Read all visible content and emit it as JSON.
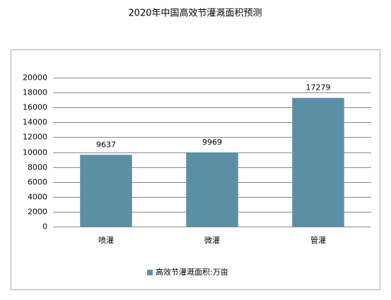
{
  "chart_data": {
    "type": "bar",
    "title": "2020年中国高效节灌溉面积预测",
    "categories": [
      "喷灌",
      "微灌",
      "管灌"
    ],
    "series": [
      {
        "name": "高效节灌溉面积:万亩",
        "color": "#5b8fa6",
        "values": [
          9637,
          9969,
          17279
        ]
      }
    ],
    "ylim": [
      0,
      20000
    ],
    "yticks": [
      0,
      2000,
      4000,
      6000,
      8000,
      10000,
      12000,
      14000,
      16000,
      18000,
      20000
    ],
    "grid": true,
    "legend": "bottom"
  }
}
